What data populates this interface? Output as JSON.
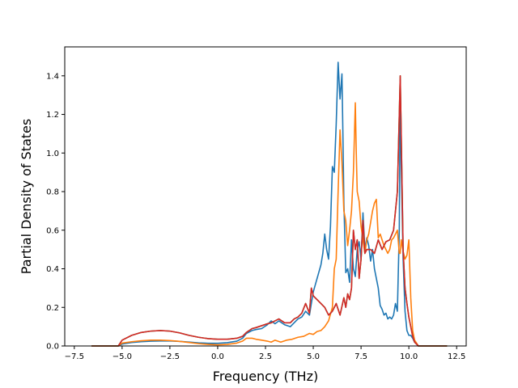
{
  "chart_data": {
    "type": "line",
    "title": "",
    "xlabel": "Frequency (THz)",
    "ylabel": "Partial Density of States",
    "xlim": [
      -8.0,
      13.0
    ],
    "ylim": [
      0.0,
      1.55
    ],
    "xticks": [
      -7.5,
      -5.0,
      -2.5,
      0.0,
      2.5,
      5.0,
      7.5,
      10.0,
      12.5
    ],
    "xtick_labels": [
      "−7.5",
      "−5.0",
      "−2.5",
      "0.0",
      "2.5",
      "5.0",
      "7.5",
      "10.0",
      "12.5"
    ],
    "yticks": [
      0.0,
      0.2,
      0.4,
      0.6,
      0.8,
      1.0,
      1.2,
      1.4
    ],
    "ytick_labels": [
      "0.0",
      "0.2",
      "0.4",
      "0.6",
      "0.8",
      "1.0",
      "1.2",
      "1.4"
    ],
    "grid": false,
    "legend": "none",
    "series": [
      {
        "color": "#1f77b4",
        "x": [
          -6.6,
          -5.2,
          -5.0,
          -4.5,
          -4.0,
          -3.5,
          -3.0,
          -2.5,
          -2.0,
          -1.5,
          -1.0,
          -0.5,
          0.0,
          0.5,
          1.0,
          1.3,
          1.5,
          1.8,
          2.0,
          2.3,
          2.6,
          2.8,
          3.0,
          3.2,
          3.5,
          3.8,
          4.0,
          4.2,
          4.4,
          4.6,
          4.8,
          5.0,
          5.2,
          5.4,
          5.5,
          5.6,
          5.7,
          5.8,
          5.9,
          6.0,
          6.1,
          6.2,
          6.3,
          6.4,
          6.5,
          6.55,
          6.6,
          6.7,
          6.8,
          6.9,
          7.0,
          7.1,
          7.2,
          7.3,
          7.4,
          7.5,
          7.6,
          7.7,
          7.8,
          7.9,
          8.0,
          8.1,
          8.2,
          8.3,
          8.4,
          8.5,
          8.6,
          8.7,
          8.8,
          8.9,
          9.0,
          9.1,
          9.2,
          9.3,
          9.4,
          9.5,
          9.55,
          9.6,
          9.7,
          9.8,
          9.9,
          10.0,
          10.1,
          10.2,
          10.3,
          10.5,
          10.7,
          12.0
        ],
        "y": [
          0.0,
          0.0,
          0.01,
          0.018,
          0.022,
          0.025,
          0.026,
          0.026,
          0.024,
          0.02,
          0.016,
          0.014,
          0.014,
          0.017,
          0.025,
          0.04,
          0.065,
          0.08,
          0.085,
          0.09,
          0.11,
          0.13,
          0.115,
          0.13,
          0.11,
          0.1,
          0.12,
          0.14,
          0.15,
          0.18,
          0.16,
          0.28,
          0.35,
          0.42,
          0.48,
          0.58,
          0.5,
          0.45,
          0.62,
          0.93,
          0.9,
          1.15,
          1.47,
          1.28,
          1.41,
          1.1,
          0.75,
          0.38,
          0.4,
          0.33,
          0.55,
          0.4,
          0.36,
          0.5,
          0.54,
          0.45,
          0.69,
          0.5,
          0.56,
          0.52,
          0.44,
          0.5,
          0.4,
          0.35,
          0.3,
          0.21,
          0.19,
          0.16,
          0.17,
          0.14,
          0.15,
          0.14,
          0.16,
          0.22,
          0.18,
          0.6,
          1.38,
          0.95,
          0.45,
          0.18,
          0.08,
          0.055,
          0.055,
          0.04,
          0.02,
          0.0,
          0.0,
          0.0
        ]
      },
      {
        "color": "#ff7f0e",
        "x": [
          -6.6,
          -5.2,
          -5.0,
          -4.5,
          -4.0,
          -3.5,
          -3.0,
          -2.5,
          -2.0,
          -1.5,
          -1.0,
          -0.5,
          0.0,
          0.5,
          1.0,
          1.3,
          1.5,
          1.8,
          2.0,
          2.3,
          2.6,
          2.8,
          3.0,
          3.3,
          3.6,
          3.9,
          4.2,
          4.5,
          4.8,
          5.0,
          5.2,
          5.4,
          5.6,
          5.8,
          6.0,
          6.1,
          6.2,
          6.3,
          6.4,
          6.5,
          6.6,
          6.7,
          6.8,
          6.9,
          7.0,
          7.1,
          7.2,
          7.25,
          7.3,
          7.4,
          7.5,
          7.6,
          7.7,
          7.8,
          7.9,
          8.0,
          8.1,
          8.2,
          8.3,
          8.4,
          8.5,
          8.6,
          8.7,
          8.8,
          8.9,
          9.0,
          9.1,
          9.2,
          9.3,
          9.4,
          9.5,
          9.55,
          9.6,
          9.7,
          9.8,
          9.9,
          10.0,
          10.1,
          10.2,
          10.3,
          10.5,
          10.7,
          12.0
        ],
        "y": [
          0.0,
          0.0,
          0.015,
          0.022,
          0.027,
          0.03,
          0.03,
          0.028,
          0.024,
          0.018,
          0.012,
          0.008,
          0.006,
          0.008,
          0.015,
          0.025,
          0.04,
          0.04,
          0.035,
          0.03,
          0.025,
          0.02,
          0.03,
          0.02,
          0.03,
          0.035,
          0.045,
          0.05,
          0.065,
          0.06,
          0.075,
          0.08,
          0.1,
          0.13,
          0.2,
          0.4,
          0.45,
          0.8,
          1.12,
          0.95,
          0.7,
          0.65,
          0.52,
          0.6,
          0.7,
          0.9,
          1.26,
          1.0,
          0.8,
          0.75,
          0.62,
          0.55,
          0.48,
          0.55,
          0.58,
          0.64,
          0.7,
          0.74,
          0.76,
          0.56,
          0.58,
          0.55,
          0.52,
          0.5,
          0.48,
          0.5,
          0.55,
          0.56,
          0.58,
          0.6,
          0.48,
          0.48,
          0.55,
          0.49,
          0.45,
          0.47,
          0.55,
          0.25,
          0.08,
          0.03,
          0.0,
          0.0,
          0.0
        ]
      },
      {
        "color": "#2ca02c",
        "x": [
          -6.6,
          -5.2,
          -5.0,
          -4.5,
          -4.0,
          -3.5,
          -3.0,
          -2.5,
          -2.0,
          -1.5,
          -1.0,
          -0.5,
          0.0,
          0.5,
          1.0,
          1.3,
          1.5,
          1.8,
          2.0,
          2.3,
          2.6,
          2.8,
          3.0,
          3.2,
          3.5,
          3.8,
          4.0,
          4.2,
          4.4,
          4.6,
          4.8,
          4.9,
          5.0,
          5.2,
          5.4,
          5.6,
          5.8,
          6.0,
          6.2,
          6.4,
          6.6,
          6.7,
          6.8,
          6.9,
          7.0,
          7.1,
          7.2,
          7.3,
          7.4,
          7.5,
          7.6,
          7.7,
          7.8,
          8.0,
          8.2,
          8.4,
          8.6,
          8.8,
          9.0,
          9.2,
          9.4,
          9.5,
          9.55,
          9.6,
          9.7,
          9.8,
          9.9,
          10.0,
          10.1,
          10.2,
          10.3,
          10.5,
          10.7,
          12.0
        ],
        "y": [
          0.0,
          0.0,
          0.03,
          0.055,
          0.07,
          0.077,
          0.08,
          0.077,
          0.068,
          0.055,
          0.045,
          0.038,
          0.035,
          0.035,
          0.04,
          0.05,
          0.07,
          0.09,
          0.095,
          0.105,
          0.115,
          0.12,
          0.13,
          0.14,
          0.12,
          0.12,
          0.14,
          0.15,
          0.17,
          0.22,
          0.17,
          0.3,
          0.26,
          0.24,
          0.22,
          0.2,
          0.16,
          0.18,
          0.22,
          0.16,
          0.25,
          0.2,
          0.27,
          0.24,
          0.3,
          0.6,
          0.5,
          0.55,
          0.35,
          0.45,
          0.65,
          0.48,
          0.5,
          0.5,
          0.48,
          0.55,
          0.5,
          0.54,
          0.55,
          0.6,
          0.8,
          1.2,
          1.4,
          1.1,
          0.5,
          0.3,
          0.22,
          0.15,
          0.1,
          0.05,
          0.02,
          0.0,
          0.0,
          0.0
        ]
      },
      {
        "color": "#d62728",
        "x": [
          -6.6,
          -5.2,
          -5.0,
          -4.5,
          -4.0,
          -3.5,
          -3.0,
          -2.5,
          -2.0,
          -1.5,
          -1.0,
          -0.5,
          0.0,
          0.5,
          1.0,
          1.3,
          1.5,
          1.8,
          2.0,
          2.3,
          2.6,
          2.8,
          3.0,
          3.2,
          3.5,
          3.8,
          4.0,
          4.2,
          4.4,
          4.6,
          4.8,
          4.9,
          5.0,
          5.2,
          5.4,
          5.6,
          5.8,
          6.0,
          6.2,
          6.4,
          6.6,
          6.7,
          6.8,
          6.9,
          7.0,
          7.1,
          7.2,
          7.3,
          7.4,
          7.5,
          7.6,
          7.7,
          7.8,
          8.0,
          8.2,
          8.4,
          8.6,
          8.8,
          9.0,
          9.2,
          9.4,
          9.5,
          9.55,
          9.6,
          9.7,
          9.8,
          9.9,
          10.0,
          10.1,
          10.2,
          10.3,
          10.5,
          10.7,
          12.0
        ],
        "y": [
          0.0,
          0.0,
          0.03,
          0.055,
          0.07,
          0.077,
          0.08,
          0.077,
          0.068,
          0.055,
          0.045,
          0.038,
          0.035,
          0.035,
          0.04,
          0.05,
          0.07,
          0.09,
          0.095,
          0.105,
          0.115,
          0.12,
          0.13,
          0.14,
          0.12,
          0.12,
          0.14,
          0.15,
          0.17,
          0.22,
          0.17,
          0.3,
          0.26,
          0.24,
          0.22,
          0.2,
          0.16,
          0.18,
          0.22,
          0.16,
          0.25,
          0.2,
          0.27,
          0.24,
          0.3,
          0.6,
          0.5,
          0.55,
          0.35,
          0.45,
          0.65,
          0.48,
          0.5,
          0.5,
          0.48,
          0.55,
          0.5,
          0.54,
          0.55,
          0.6,
          0.8,
          1.2,
          1.4,
          1.1,
          0.5,
          0.3,
          0.22,
          0.15,
          0.1,
          0.05,
          0.02,
          0.0,
          0.0,
          0.0
        ]
      }
    ]
  }
}
